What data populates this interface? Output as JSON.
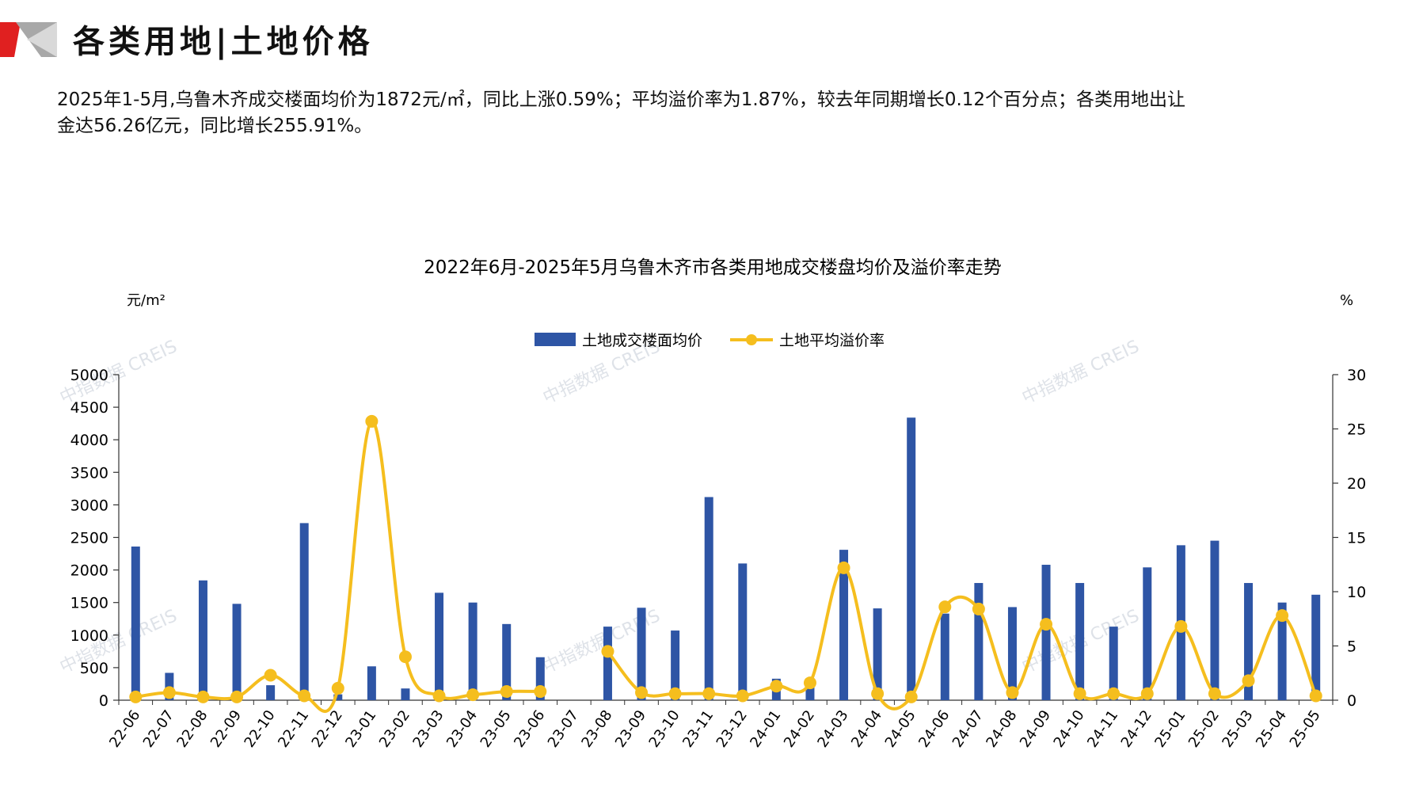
{
  "header": {
    "title": "各类用地|土地价格"
  },
  "summary": {
    "line1": "2025年1-5月,乌鲁木齐成交楼面均价为1872元/㎡，同比上涨0.59%；平均溢价率为1.87%，较去年同期增长0.12个百分点；各类用地出让",
    "line2": "金达56.26亿元，同比增长255.91%。"
  },
  "watermark": "中指数据 CREIS",
  "colors": {
    "bar": "#2E55A5",
    "line": "#F5BE1E",
    "brand_red": "#E02020",
    "brand_gray": "#9A9A9A"
  },
  "chart_data": {
    "type": "bar",
    "title": "2022年6月-2025年5月乌鲁木齐市各类用地成交楼盘均价及溢价率走势",
    "ylabel_left": "元/m²",
    "ylabel_right": "%",
    "ylim_left": [
      0,
      5000
    ],
    "ylim_right": [
      0,
      30
    ],
    "yticks_left": [
      "0",
      "500",
      "1000",
      "1500",
      "2000",
      "2500",
      "3000",
      "3500",
      "4000",
      "4500",
      "5000"
    ],
    "yticks_right": [
      "0",
      "5",
      "10",
      "15",
      "20",
      "25",
      "30"
    ],
    "legend_position": "top-center",
    "grid": false,
    "categories": [
      "22-06",
      "22-07",
      "22-08",
      "22-09",
      "22-10",
      "22-11",
      "22-12",
      "23-01",
      "23-02",
      "23-03",
      "23-04",
      "23-05",
      "23-06",
      "23-07",
      "23-08",
      "23-09",
      "23-10",
      "23-11",
      "23-12",
      "24-01",
      "24-02",
      "24-03",
      "24-04",
      "24-05",
      "24-06",
      "24-07",
      "24-08",
      "24-09",
      "24-10",
      "24-11",
      "24-12",
      "25-01",
      "25-02",
      "25-03",
      "25-04",
      "25-05"
    ],
    "series": [
      {
        "name": "土地成交楼面均价",
        "type": "bar",
        "axis": "left",
        "values": [
          2360,
          420,
          1840,
          1480,
          230,
          2720,
          90,
          520,
          180,
          1650,
          1500,
          1170,
          660,
          null,
          1130,
          1420,
          1070,
          3120,
          2100,
          330,
          280,
          2310,
          1410,
          4340,
          1330,
          1800,
          1430,
          2080,
          1800,
          1130,
          2040,
          2380,
          2450,
          1800,
          1500,
          1620
        ]
      },
      {
        "name": "土地平均溢价率",
        "type": "line",
        "axis": "right",
        "values": [
          0.3,
          0.7,
          0.3,
          0.3,
          2.3,
          0.4,
          1.1,
          25.7,
          4.0,
          0.4,
          0.5,
          0.8,
          0.8,
          null,
          4.5,
          0.7,
          0.6,
          0.6,
          0.4,
          1.3,
          1.6,
          12.2,
          0.6,
          0.3,
          8.6,
          8.4,
          0.7,
          7.0,
          0.6,
          0.6,
          0.6,
          6.8,
          0.6,
          1.8,
          7.8,
          0.4
        ]
      }
    ]
  }
}
